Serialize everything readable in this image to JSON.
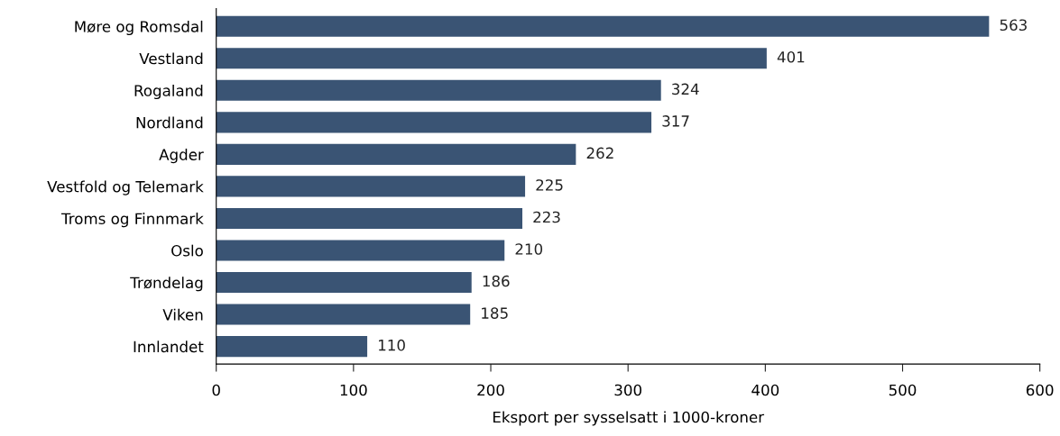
{
  "chart_data": {
    "type": "bar",
    "orientation": "horizontal",
    "xlabel": "Eksport per sysselsatt i 1000-kroner",
    "categories": [
      "Møre og Romsdal",
      "Vestland",
      "Rogaland",
      "Nordland",
      "Agder",
      "Vestfold og Telemark",
      "Troms og Finnmark",
      "Oslo",
      "Trøndelag",
      "Viken",
      "Innlandet"
    ],
    "values": [
      563,
      401,
      324,
      317,
      262,
      225,
      223,
      210,
      186,
      185,
      110
    ],
    "color": "#3a5474",
    "xlim": [
      0,
      600
    ],
    "xticks": [
      0,
      100,
      200,
      300,
      400,
      500,
      600
    ],
    "grid": false,
    "legend": false,
    "data_labels": true
  }
}
